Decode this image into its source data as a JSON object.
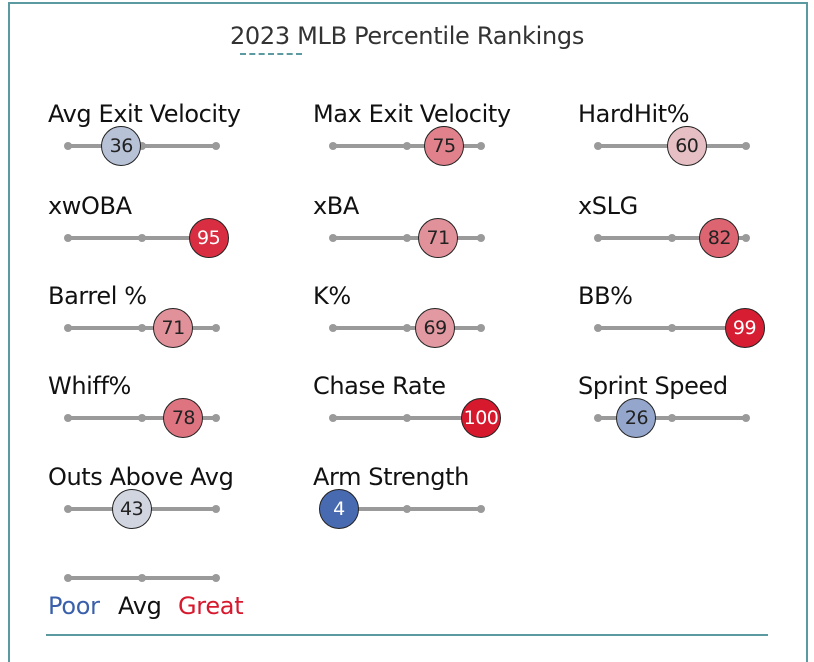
{
  "chart_data": {
    "type": "percentile-rankings",
    "title": "2023 MLB Percentile Rankings",
    "scale": [
      0,
      100
    ],
    "stats": [
      {
        "label": "Avg Exit Velocity",
        "value": 36
      },
      {
        "label": "Max Exit Velocity",
        "value": 75
      },
      {
        "label": "HardHit%",
        "value": 60
      },
      {
        "label": "xwOBA",
        "value": 95
      },
      {
        "label": "xBA",
        "value": 71
      },
      {
        "label": "xSLG",
        "value": 82
      },
      {
        "label": "Barrel %",
        "value": 71
      },
      {
        "label": "K%",
        "value": 69
      },
      {
        "label": "BB%",
        "value": 99
      },
      {
        "label": "Whiff%",
        "value": 78
      },
      {
        "label": "Chase Rate",
        "value": 100
      },
      {
        "label": "Sprint Speed",
        "value": 26
      },
      {
        "label": "Outs Above Avg",
        "value": 43
      },
      {
        "label": "Arm Strength",
        "value": 4
      }
    ],
    "legend": {
      "poor": "Poor",
      "avg": "Avg",
      "great": "Great"
    },
    "colors": {
      "poor": "#3a5fab",
      "avg": "#e8e8e8",
      "great": "#d7192e"
    }
  }
}
